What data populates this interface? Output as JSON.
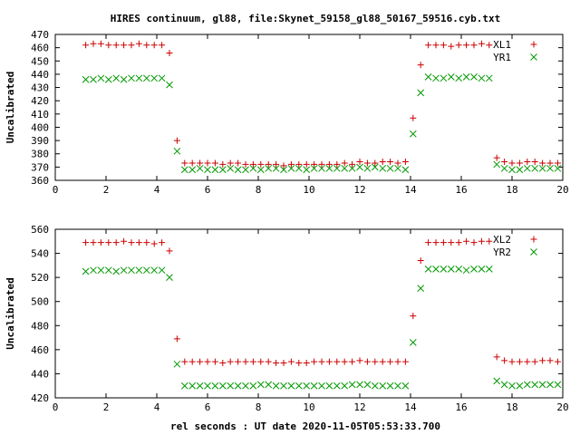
{
  "title": "HIRES continuum, gl88, file:Skynet_59158_gl88_50167_59516.cyb.txt",
  "xlabel": "rel seconds : UT date 2020-11-05T05:53:33.700",
  "colors": {
    "plus": "#cc0000",
    "cross": "#009900",
    "axis": "#000000"
  },
  "chart_data": [
    {
      "type": "scatter",
      "ylabel": "Uncalibrated",
      "xlim": [
        0,
        20
      ],
      "ylim": [
        360,
        470
      ],
      "xticks": [
        "0",
        "2",
        "4",
        "6",
        "8",
        "10",
        "12",
        "14",
        "16",
        "18",
        "20"
      ],
      "yticks": [
        "360",
        "370",
        "380",
        "390",
        "400",
        "410",
        "420",
        "430",
        "440",
        "450",
        "460",
        "470"
      ],
      "grid": false,
      "legend_position": "top-right",
      "series": [
        {
          "name": "XL1",
          "marker": "plus",
          "x": [
            1.2,
            1.5,
            1.8,
            2.1,
            2.4,
            2.7,
            3.0,
            3.3,
            3.6,
            3.9,
            4.2,
            4.5,
            4.8,
            5.1,
            5.4,
            5.7,
            6.0,
            6.3,
            6.6,
            6.9,
            7.2,
            7.5,
            7.8,
            8.1,
            8.4,
            8.7,
            9.0,
            9.3,
            9.6,
            9.9,
            10.2,
            10.5,
            10.8,
            11.1,
            11.4,
            11.7,
            12.0,
            12.3,
            12.6,
            12.9,
            13.2,
            13.5,
            13.8,
            14.1,
            14.4,
            14.7,
            15.0,
            15.3,
            15.6,
            15.9,
            16.2,
            16.5,
            16.8,
            17.1,
            17.4,
            17.7,
            18.0,
            18.3,
            18.6,
            18.9,
            19.2,
            19.5,
            19.8
          ],
          "y": [
            462,
            463,
            463,
            462,
            462,
            462,
            462,
            463,
            462,
            462,
            462,
            456,
            390,
            373,
            373,
            373,
            373,
            373,
            372,
            373,
            373,
            372,
            372,
            372,
            372,
            372,
            371,
            372,
            372,
            372,
            372,
            372,
            372,
            372,
            373,
            372,
            374,
            373,
            373,
            374,
            374,
            373,
            374,
            407,
            447,
            462,
            462,
            462,
            461,
            462,
            462,
            462,
            463,
            462,
            377,
            374,
            373,
            373,
            374,
            374,
            373,
            373,
            373
          ]
        },
        {
          "name": "YR1",
          "marker": "cross",
          "x": [
            1.2,
            1.5,
            1.8,
            2.1,
            2.4,
            2.7,
            3.0,
            3.3,
            3.6,
            3.9,
            4.2,
            4.5,
            4.8,
            5.1,
            5.4,
            5.7,
            6.0,
            6.3,
            6.6,
            6.9,
            7.2,
            7.5,
            7.8,
            8.1,
            8.4,
            8.7,
            9.0,
            9.3,
            9.6,
            9.9,
            10.2,
            10.5,
            10.8,
            11.1,
            11.4,
            11.7,
            12.0,
            12.3,
            12.6,
            12.9,
            13.2,
            13.5,
            13.8,
            14.1,
            14.4,
            14.7,
            15.0,
            15.3,
            15.6,
            15.9,
            16.2,
            16.5,
            16.8,
            17.1,
            17.4,
            17.7,
            18.0,
            18.3,
            18.6,
            18.9,
            19.2,
            19.5,
            19.8
          ],
          "y": [
            436,
            436,
            437,
            436,
            437,
            436,
            437,
            437,
            437,
            437,
            437,
            432,
            382,
            368,
            368,
            369,
            368,
            368,
            368,
            369,
            368,
            368,
            369,
            368,
            369,
            369,
            368,
            369,
            369,
            368,
            369,
            369,
            369,
            369,
            369,
            369,
            370,
            369,
            370,
            369,
            369,
            369,
            368,
            395,
            426,
            438,
            437,
            437,
            438,
            437,
            438,
            438,
            437,
            437,
            372,
            369,
            368,
            368,
            369,
            369,
            369,
            369,
            369
          ]
        }
      ]
    },
    {
      "type": "scatter",
      "ylabel": "Uncalibrated",
      "xlim": [
        0,
        20
      ],
      "ylim": [
        420,
        560
      ],
      "xticks": [
        "0",
        "2",
        "4",
        "6",
        "8",
        "10",
        "12",
        "14",
        "16",
        "18",
        "20"
      ],
      "yticks": [
        "420",
        "440",
        "460",
        "480",
        "500",
        "520",
        "540",
        "560"
      ],
      "grid": false,
      "legend_position": "top-right",
      "series": [
        {
          "name": "XL2",
          "marker": "plus",
          "x": [
            1.2,
            1.5,
            1.8,
            2.1,
            2.4,
            2.7,
            3.0,
            3.3,
            3.6,
            3.9,
            4.2,
            4.5,
            4.8,
            5.1,
            5.4,
            5.7,
            6.0,
            6.3,
            6.6,
            6.9,
            7.2,
            7.5,
            7.8,
            8.1,
            8.4,
            8.7,
            9.0,
            9.3,
            9.6,
            9.9,
            10.2,
            10.5,
            10.8,
            11.1,
            11.4,
            11.7,
            12.0,
            12.3,
            12.6,
            12.9,
            13.2,
            13.5,
            13.8,
            14.1,
            14.4,
            14.7,
            15.0,
            15.3,
            15.6,
            15.9,
            16.2,
            16.5,
            16.8,
            17.1,
            17.4,
            17.7,
            18.0,
            18.3,
            18.6,
            18.9,
            19.2,
            19.5,
            19.8
          ],
          "y": [
            549,
            549,
            549,
            549,
            549,
            550,
            549,
            549,
            549,
            548,
            549,
            542,
            469,
            450,
            450,
            450,
            450,
            450,
            449,
            450,
            450,
            450,
            450,
            450,
            450,
            449,
            449,
            450,
            449,
            449,
            450,
            450,
            450,
            450,
            450,
            450,
            451,
            450,
            450,
            450,
            450,
            450,
            450,
            488,
            534,
            549,
            549,
            549,
            549,
            549,
            550,
            549,
            550,
            550,
            454,
            451,
            450,
            450,
            450,
            450,
            451,
            451,
            450
          ]
        },
        {
          "name": "YR2",
          "marker": "cross",
          "x": [
            1.2,
            1.5,
            1.8,
            2.1,
            2.4,
            2.7,
            3.0,
            3.3,
            3.6,
            3.9,
            4.2,
            4.5,
            4.8,
            5.1,
            5.4,
            5.7,
            6.0,
            6.3,
            6.6,
            6.9,
            7.2,
            7.5,
            7.8,
            8.1,
            8.4,
            8.7,
            9.0,
            9.3,
            9.6,
            9.9,
            10.2,
            10.5,
            10.8,
            11.1,
            11.4,
            11.7,
            12.0,
            12.3,
            12.6,
            12.9,
            13.2,
            13.5,
            13.8,
            14.1,
            14.4,
            14.7,
            15.0,
            15.3,
            15.6,
            15.9,
            16.2,
            16.5,
            16.8,
            17.1,
            17.4,
            17.7,
            18.0,
            18.3,
            18.6,
            18.9,
            19.2,
            19.5,
            19.8
          ],
          "y": [
            525,
            526,
            526,
            526,
            525,
            526,
            526,
            526,
            526,
            526,
            526,
            520,
            448,
            430,
            430,
            430,
            430,
            430,
            430,
            430,
            430,
            430,
            430,
            431,
            431,
            430,
            430,
            430,
            430,
            430,
            430,
            430,
            430,
            430,
            430,
            431,
            431,
            431,
            430,
            430,
            430,
            430,
            430,
            466,
            511,
            527,
            527,
            527,
            527,
            527,
            526,
            527,
            527,
            527,
            434,
            431,
            430,
            430,
            431,
            431,
            431,
            431,
            431
          ]
        }
      ]
    }
  ]
}
